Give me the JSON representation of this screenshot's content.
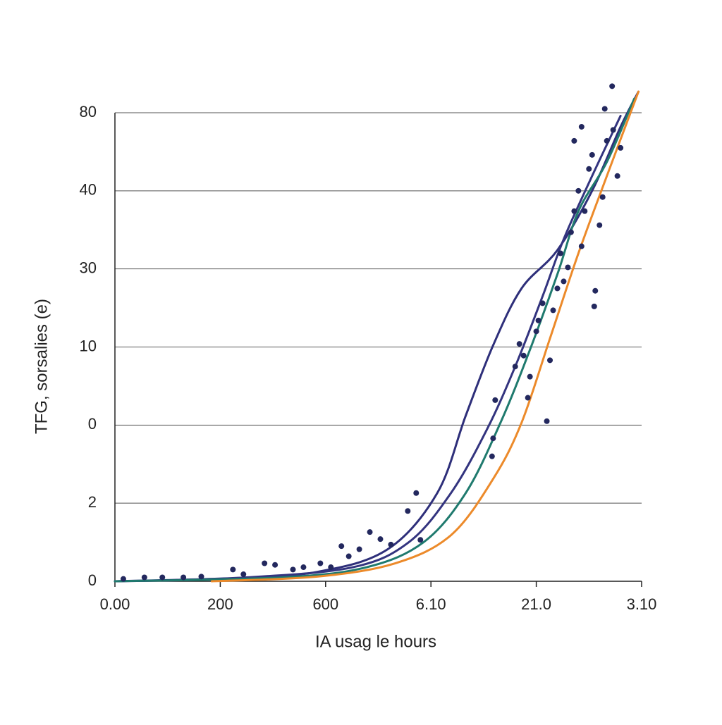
{
  "chart_data": {
    "type": "scatter",
    "x_label": "IA usag le hours",
    "y_label": "TFG, sorsalies (e)",
    "xlim": [
      0,
      5
    ],
    "ylim": [
      0,
      6
    ],
    "xticks": [
      {
        "value": 0,
        "label": "0.00"
      },
      {
        "value": 1,
        "label": "200"
      },
      {
        "value": 2,
        "label": "600"
      },
      {
        "value": 3,
        "label": "6.10"
      },
      {
        "value": 4,
        "label": "21.0"
      },
      {
        "value": 5,
        "label": "3.10"
      }
    ],
    "yticks": [
      {
        "value": 0,
        "label": "0"
      },
      {
        "value": 1,
        "label": "2"
      },
      {
        "value": 2,
        "label": "0"
      },
      {
        "value": 3,
        "label": "10"
      },
      {
        "value": 4,
        "label": "30"
      },
      {
        "value": 5,
        "label": "40"
      },
      {
        "value": 6,
        "label": "80"
      }
    ],
    "grid": true,
    "series": [
      {
        "type": "line",
        "color": "#2e2f7a",
        "x": [
          0,
          1.05,
          1.92,
          2.59,
          3.06,
          3.33,
          3.59,
          3.86,
          4.2,
          4.53,
          4.8,
          4.97
        ],
        "values": [
          0,
          0.03,
          0.12,
          0.41,
          1.13,
          2.12,
          3.02,
          3.75,
          4.24,
          5.0,
          5.82,
          6.27
        ]
      },
      {
        "type": "line",
        "color": "#33347f",
        "x": [
          0,
          1.25,
          2.26,
          2.79,
          3.19,
          3.53,
          3.8,
          4.06,
          4.26,
          4.53,
          4.8
        ],
        "values": [
          0,
          0.05,
          0.18,
          0.5,
          1.13,
          1.94,
          2.75,
          3.65,
          4.38,
          5.19,
          5.96
        ]
      },
      {
        "type": "line",
        "color": "#1f7a6e",
        "x": [
          0,
          1.59,
          2.39,
          2.93,
          3.33,
          3.66,
          3.93,
          4.2,
          4.4,
          4.67,
          4.93
        ],
        "values": [
          0,
          0.05,
          0.18,
          0.5,
          1.13,
          2.03,
          2.93,
          3.93,
          4.74,
          5.37,
          6.18
        ]
      },
      {
        "type": "line",
        "color": "#ec8a2a",
        "x": [
          0.92,
          1.92,
          2.66,
          3.19,
          3.59,
          3.86,
          4.13,
          4.4,
          4.67,
          4.97
        ],
        "values": [
          0,
          0.06,
          0.23,
          0.59,
          1.31,
          2.03,
          3.11,
          4.2,
          5.19,
          6.27
        ]
      },
      {
        "type": "scatter",
        "color": "#23285e",
        "x": [
          0.08,
          0.28,
          0.45,
          0.65,
          0.82,
          1.12,
          1.22,
          1.42,
          1.52,
          1.69,
          1.79,
          1.95,
          2.05,
          2.15,
          2.22,
          2.32,
          2.42,
          2.52,
          2.62,
          2.78,
          2.86,
          2.9,
          3.59,
          3.58,
          3.61,
          3.8,
          3.84,
          3.88,
          3.92,
          3.94,
          4.0,
          4.02,
          4.06,
          4.1,
          4.13,
          4.16,
          4.2,
          4.23,
          4.26,
          4.3,
          4.33,
          4.36,
          4.4,
          4.43,
          4.46,
          4.5,
          4.53,
          4.56,
          4.6,
          4.63,
          4.67,
          4.73,
          4.77,
          4.8,
          4.36,
          4.43,
          4.55,
          4.65,
          4.72
        ],
        "values": [
          0.03,
          0.05,
          0.05,
          0.05,
          0.06,
          0.15,
          0.09,
          0.23,
          0.21,
          0.15,
          0.18,
          0.23,
          0.18,
          0.45,
          0.32,
          0.41,
          0.63,
          0.54,
          0.47,
          0.9,
          1.13,
          0.53,
          1.83,
          1.6,
          2.32,
          2.75,
          3.04,
          2.89,
          2.35,
          2.62,
          3.2,
          3.34,
          3.56,
          2.05,
          2.83,
          3.47,
          3.75,
          4.2,
          3.84,
          4.02,
          4.47,
          4.74,
          5.0,
          4.29,
          4.74,
          5.28,
          5.46,
          3.72,
          4.56,
          4.92,
          5.64,
          5.78,
          5.19,
          5.55,
          5.64,
          5.82,
          3.52,
          6.05,
          6.34
        ]
      }
    ]
  }
}
